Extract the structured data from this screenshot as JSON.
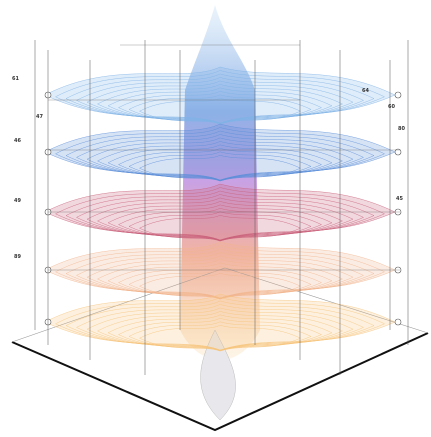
{
  "labels": [
    "61",
    "47",
    "46",
    "49",
    "89",
    "64",
    "60",
    "80",
    "45"
  ]
}
